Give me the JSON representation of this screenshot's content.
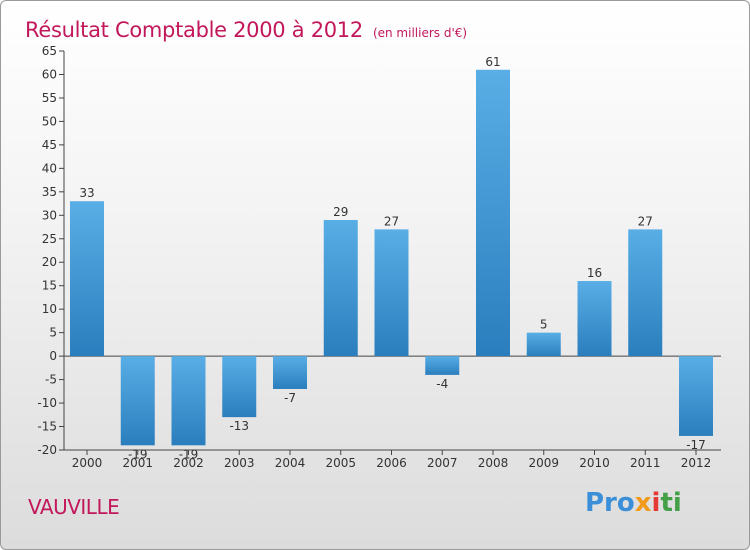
{
  "chart_data": {
    "type": "bar",
    "title": "Résultat Comptable 2000 à 2012",
    "subtitle": "(en milliers d'€)",
    "categories": [
      "2000",
      "2001",
      "2002",
      "2003",
      "2004",
      "2005",
      "2006",
      "2007",
      "2008",
      "2009",
      "2010",
      "2011",
      "2012"
    ],
    "values": [
      33,
      -19,
      -19,
      -13,
      -7,
      29,
      27,
      -4,
      61,
      5,
      16,
      27,
      -17
    ],
    "ylim": [
      -20,
      65
    ],
    "yticks": [
      -20,
      -15,
      -10,
      -5,
      0,
      5,
      10,
      15,
      20,
      25,
      30,
      35,
      40,
      45,
      50,
      55,
      60,
      65
    ],
    "grid": false,
    "xlabel": "",
    "ylabel": "",
    "bar_color_top": "#5aaee6",
    "bar_color_bottom": "#2a7ebd"
  },
  "commune": "VAUVILLE",
  "logo": {
    "text": "Proxiti",
    "parts": [
      "Pro",
      "x",
      "i",
      "ti"
    ]
  },
  "colors": {
    "title": "#c2185b",
    "commune": "#c2185b",
    "axis": "#444444"
  }
}
